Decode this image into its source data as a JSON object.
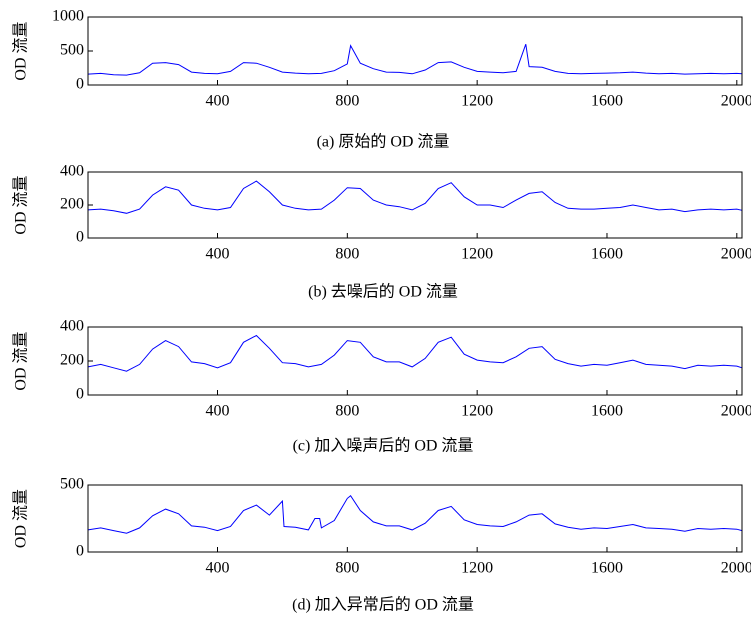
{
  "chart_data": [
    {
      "type": "line",
      "title": "(a)  原始的 OD 流量",
      "ylabel": "OD 流量",
      "color": "#0000ff",
      "xlim": [
        1,
        2016
      ],
      "ylim": [
        0,
        1000
      ],
      "xticks": [
        400,
        800,
        1200,
        1600,
        2000
      ],
      "yticks": [
        0,
        500,
        1000
      ],
      "x": [
        1,
        40,
        80,
        120,
        160,
        200,
        240,
        280,
        320,
        360,
        400,
        440,
        480,
        520,
        560,
        600,
        640,
        680,
        720,
        760,
        800,
        810,
        840,
        880,
        920,
        960,
        1000,
        1040,
        1080,
        1120,
        1160,
        1200,
        1240,
        1280,
        1320,
        1350,
        1360,
        1400,
        1440,
        1480,
        1520,
        1560,
        1600,
        1640,
        1680,
        1720,
        1760,
        1800,
        1840,
        1880,
        1920,
        1960,
        2000,
        2016
      ],
      "values": [
        160,
        170,
        150,
        145,
        180,
        320,
        330,
        300,
        190,
        170,
        165,
        200,
        330,
        320,
        260,
        190,
        175,
        165,
        170,
        210,
        310,
        580,
        320,
        240,
        190,
        185,
        165,
        220,
        330,
        340,
        260,
        200,
        190,
        180,
        200,
        600,
        270,
        260,
        200,
        170,
        165,
        170,
        175,
        180,
        190,
        175,
        165,
        170,
        160,
        165,
        170,
        165,
        170,
        165
      ]
    },
    {
      "type": "line",
      "title": "(b)  去噪后的 OD 流量",
      "ylabel": "OD 流量",
      "color": "#0000ff",
      "xlim": [
        1,
        2016
      ],
      "ylim": [
        0,
        400
      ],
      "xticks": [
        400,
        800,
        1200,
        1600,
        2000
      ],
      "yticks": [
        0,
        200,
        400
      ],
      "x": [
        1,
        40,
        80,
        120,
        160,
        200,
        240,
        280,
        320,
        360,
        400,
        440,
        480,
        520,
        560,
        600,
        640,
        680,
        720,
        760,
        800,
        840,
        880,
        920,
        960,
        1000,
        1040,
        1080,
        1120,
        1160,
        1200,
        1240,
        1280,
        1320,
        1360,
        1400,
        1440,
        1480,
        1520,
        1560,
        1600,
        1640,
        1680,
        1720,
        1760,
        1800,
        1840,
        1880,
        1920,
        1960,
        2000,
        2016
      ],
      "values": [
        170,
        175,
        165,
        150,
        175,
        260,
        310,
        290,
        200,
        180,
        170,
        185,
        300,
        345,
        280,
        200,
        180,
        170,
        175,
        230,
        305,
        300,
        230,
        200,
        190,
        170,
        210,
        300,
        335,
        250,
        200,
        200,
        185,
        230,
        270,
        280,
        215,
        180,
        175,
        175,
        180,
        185,
        200,
        185,
        170,
        175,
        160,
        170,
        175,
        170,
        175,
        168
      ]
    },
    {
      "type": "line",
      "title": "(c)  加入噪声后的 OD 流量",
      "ylabel": "OD 流量",
      "color": "#0000ff",
      "xlim": [
        1,
        2016
      ],
      "ylim": [
        0,
        400
      ],
      "xticks": [
        400,
        800,
        1200,
        1600,
        2000
      ],
      "yticks": [
        0,
        200,
        400
      ],
      "x": [
        1,
        40,
        80,
        120,
        160,
        200,
        240,
        280,
        320,
        360,
        400,
        440,
        480,
        520,
        560,
        600,
        640,
        680,
        720,
        760,
        800,
        840,
        880,
        920,
        960,
        1000,
        1040,
        1080,
        1120,
        1160,
        1200,
        1240,
        1280,
        1320,
        1360,
        1400,
        1440,
        1480,
        1520,
        1560,
        1600,
        1640,
        1680,
        1720,
        1760,
        1800,
        1840,
        1880,
        1920,
        1960,
        2000,
        2016
      ],
      "values": [
        165,
        180,
        160,
        140,
        180,
        270,
        320,
        285,
        195,
        185,
        160,
        190,
        310,
        350,
        275,
        190,
        185,
        165,
        180,
        235,
        320,
        310,
        225,
        195,
        195,
        165,
        215,
        310,
        340,
        240,
        205,
        195,
        190,
        225,
        275,
        285,
        210,
        185,
        170,
        180,
        175,
        190,
        205,
        180,
        175,
        170,
        155,
        175,
        170,
        175,
        170,
        160
      ]
    },
    {
      "type": "line",
      "title": "(d)  加入异常后的 OD 流量",
      "ylabel": "OD 流量",
      "color": "#0000ff",
      "xlim": [
        1,
        2016
      ],
      "ylim": [
        0,
        500
      ],
      "xticks": [
        400,
        800,
        1200,
        1600,
        2000
      ],
      "yticks": [
        0,
        500
      ],
      "x": [
        1,
        40,
        80,
        120,
        160,
        200,
        240,
        280,
        320,
        360,
        400,
        440,
        480,
        520,
        560,
        600,
        605,
        640,
        680,
        700,
        715,
        720,
        760,
        800,
        810,
        840,
        880,
        920,
        960,
        1000,
        1040,
        1080,
        1120,
        1160,
        1200,
        1240,
        1280,
        1320,
        1360,
        1400,
        1440,
        1480,
        1520,
        1560,
        1600,
        1640,
        1680,
        1720,
        1760,
        1800,
        1840,
        1880,
        1920,
        1960,
        2000,
        2016
      ],
      "values": [
        165,
        180,
        160,
        140,
        180,
        270,
        320,
        285,
        195,
        185,
        160,
        190,
        310,
        350,
        275,
        380,
        190,
        185,
        165,
        250,
        250,
        180,
        235,
        400,
        420,
        310,
        225,
        195,
        195,
        165,
        215,
        310,
        340,
        240,
        205,
        195,
        190,
        225,
        275,
        285,
        210,
        185,
        170,
        180,
        175,
        190,
        205,
        180,
        175,
        170,
        155,
        175,
        170,
        175,
        170,
        160
      ]
    }
  ]
}
